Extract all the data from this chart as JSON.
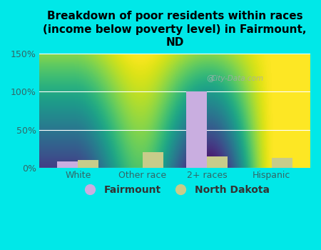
{
  "title": "Breakdown of poor residents within races\n(income below poverty level) in Fairmount,\nND",
  "categories": [
    "White",
    "Other race",
    "2+ races",
    "Hispanic"
  ],
  "fairmount_values": [
    8,
    0,
    100,
    0
  ],
  "nd_values": [
    10,
    20,
    15,
    13
  ],
  "fairmount_color": "#c9aee0",
  "nd_color": "#c8cc8a",
  "ylim": [
    0,
    150
  ],
  "yticks": [
    0,
    50,
    100,
    150
  ],
  "ytick_labels": [
    "0%",
    "50%",
    "100%",
    "150%"
  ],
  "background_color": "#00e8e8",
  "plot_bg_top": "#f5faf5",
  "plot_bg_bottom": "#d8efcc",
  "legend_labels": [
    "Fairmount",
    "North Dakota"
  ],
  "title_fontsize": 11,
  "bar_width": 0.32,
  "tick_color": "#336666",
  "watermark": "City-Data.com"
}
